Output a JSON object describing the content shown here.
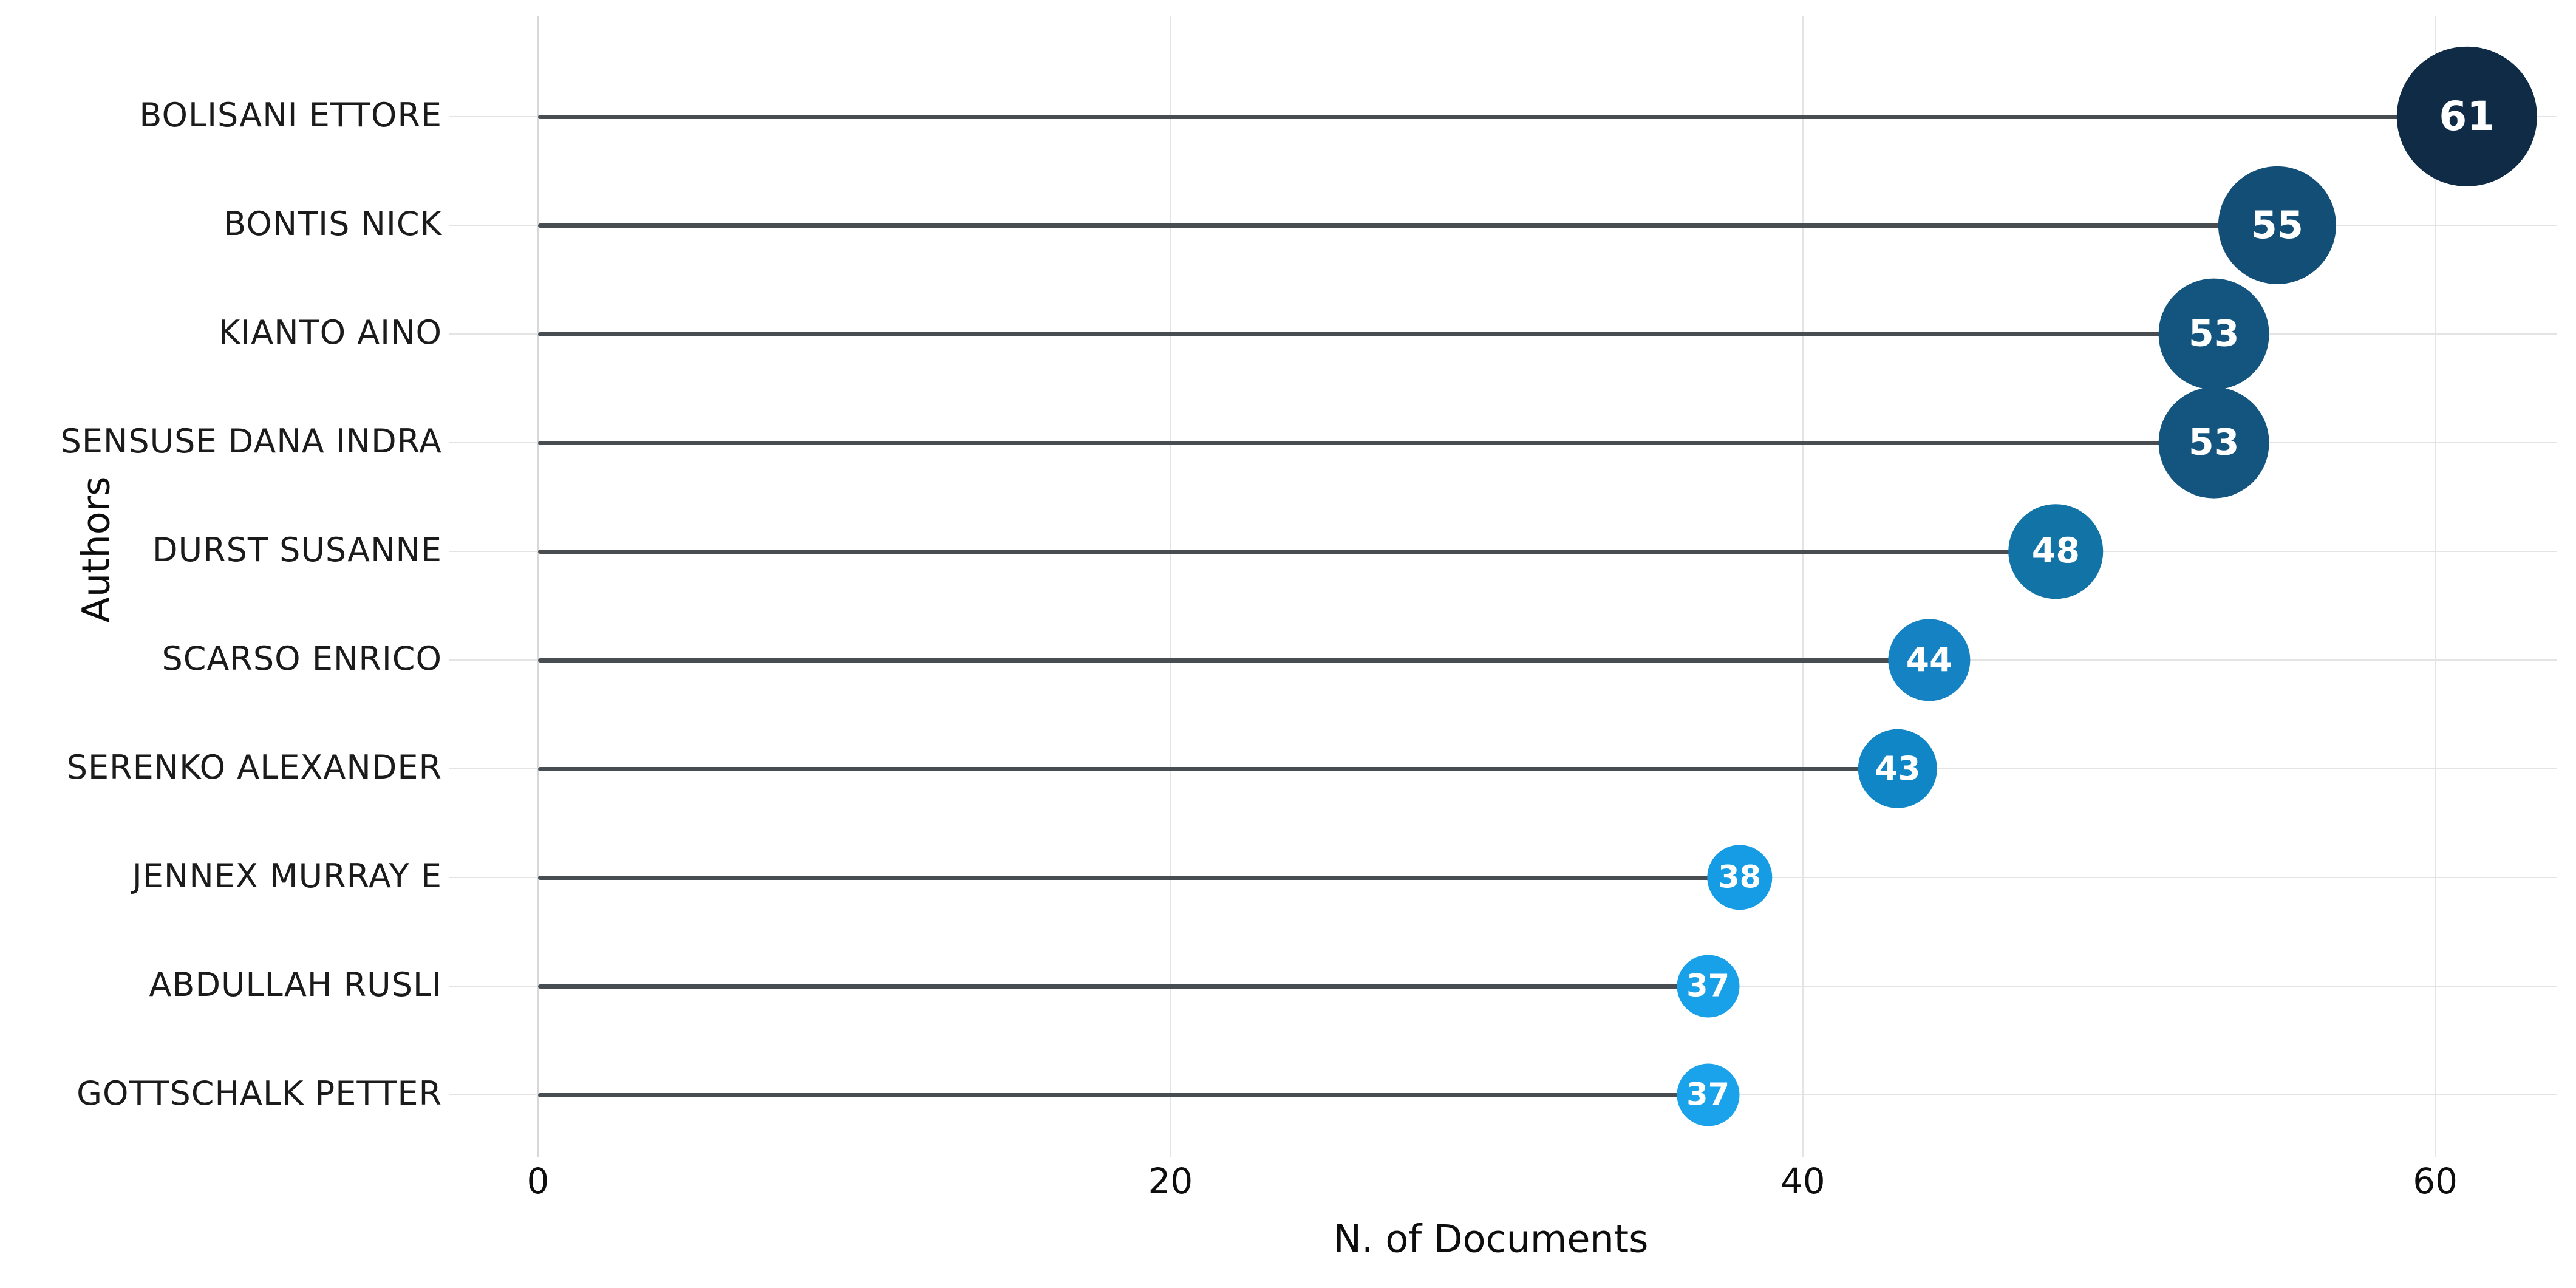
{
  "chart_data": {
    "type": "lollipop",
    "orientation": "horizontal",
    "title": "",
    "xlabel": "N. of Documents",
    "ylabel": "Authors",
    "xticks": [
      "0",
      "20",
      "40",
      "60"
    ],
    "xtick_values": [
      0,
      20,
      40,
      60
    ],
    "xlim": [
      0,
      64
    ],
    "grid": true,
    "legend": "none",
    "stem_color": "#484d52",
    "gridline_color": "#e4e4e4",
    "background_color": "#ffffff",
    "points": [
      {
        "author": "BOLISANI ETTORE",
        "documents": 61,
        "color": "#0f2b45"
      },
      {
        "author": "BONTIS NICK",
        "documents": 55,
        "color": "#134e77"
      },
      {
        "author": "KIANTO AINO",
        "documents": 53,
        "color": "#14557f"
      },
      {
        "author": "SENSUSE DANA INDRA",
        "documents": 53,
        "color": "#14557f"
      },
      {
        "author": "DURST SUSANNE",
        "documents": 48,
        "color": "#1173a6"
      },
      {
        "author": "SCARSO ENRICO",
        "documents": 44,
        "color": "#1583c3"
      },
      {
        "author": "SERENKO ALEXANDER",
        "documents": 43,
        "color": "#1186c7"
      },
      {
        "author": "JENNEX MURRAY E",
        "documents": 38,
        "color": "#169ce4"
      },
      {
        "author": "ABDULLAH RUSLI",
        "documents": 37,
        "color": "#18a1e8"
      },
      {
        "author": "GOTTSCHALK PETTER",
        "documents": 37,
        "color": "#1aa3ea"
      }
    ]
  }
}
